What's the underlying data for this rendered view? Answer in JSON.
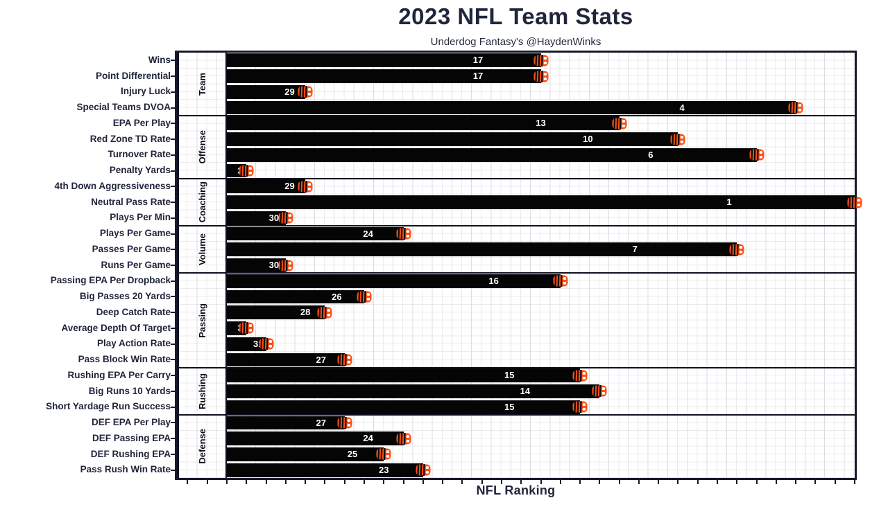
{
  "header": {
    "title": "2023 NFL Team Stats",
    "subtitle": "Underdog Fantasy's @HaydenWinks"
  },
  "chart_data": {
    "type": "bar",
    "orientation": "horizontal",
    "title": "2023 NFL Team Stats",
    "subtitle": "Underdog Fantasy's @HaydenWinks",
    "xlabel": "NFL Ranking",
    "x_axis": {
      "range": [
        0,
        32
      ],
      "tick_labels_visible": false,
      "bar_length_rule": "33 - rank (rank 1 = longest bar)"
    },
    "grid": "on",
    "bar_end_icon": "bengals-b-logo",
    "groups": [
      {
        "name": "Team",
        "rows": [
          {
            "label": "Wins",
            "rank": 17
          },
          {
            "label": "Point Differential",
            "rank": 17
          },
          {
            "label": "Injury Luck",
            "rank": 29
          },
          {
            "label": "Special Teams DVOA",
            "rank": 4
          }
        ]
      },
      {
        "name": "Offense",
        "rows": [
          {
            "label": "EPA Per Play",
            "rank": 13
          },
          {
            "label": "Red Zone TD Rate",
            "rank": 10
          },
          {
            "label": "Turnover Rate",
            "rank": 6
          },
          {
            "label": "Penalty Yards",
            "rank": 32
          }
        ]
      },
      {
        "name": "Coaching",
        "rows": [
          {
            "label": "4th Down Aggressiveness",
            "rank": 29
          },
          {
            "label": "Neutral Pass Rate",
            "rank": 1
          },
          {
            "label": "Plays Per Min",
            "rank": 30
          }
        ]
      },
      {
        "name": "Volume",
        "rows": [
          {
            "label": "Plays Per Game",
            "rank": 24
          },
          {
            "label": "Passes Per Game",
            "rank": 7
          },
          {
            "label": "Runs Per Game",
            "rank": 30
          }
        ]
      },
      {
        "name": "Passing",
        "rows": [
          {
            "label": "Passing EPA Per Dropback",
            "rank": 16
          },
          {
            "label": "Big Passes 20 Yards",
            "rank": 26
          },
          {
            "label": "Deep Catch Rate",
            "rank": 28
          },
          {
            "label": "Average Depth Of Target",
            "rank": 32
          },
          {
            "label": "Play Action Rate",
            "rank": 31
          },
          {
            "label": "Pass Block Win Rate",
            "rank": 27
          }
        ]
      },
      {
        "name": "Rushing",
        "rows": [
          {
            "label": "Rushing EPA Per Carry",
            "rank": 15
          },
          {
            "label": "Big Runs 10 Yards",
            "rank": 14
          },
          {
            "label": "Short Yardage Run Success",
            "rank": 15
          }
        ]
      },
      {
        "name": "Defense",
        "rows": [
          {
            "label": "DEF EPA Per Play",
            "rank": 27
          },
          {
            "label": "DEF Passing EPA",
            "rank": 24
          },
          {
            "label": "DEF Rushing EPA",
            "rank": 25
          },
          {
            "label": "Pass Rush Win Rate",
            "rank": 23
          }
        ]
      }
    ],
    "colors": {
      "bar": "#050505",
      "logo_orange": "#fb4f14",
      "text": "#20253c",
      "value_label": "#ffffff",
      "frame": "#171a2b",
      "grid_minor": "#ebebef",
      "grid_major": "#dcdce2"
    }
  }
}
